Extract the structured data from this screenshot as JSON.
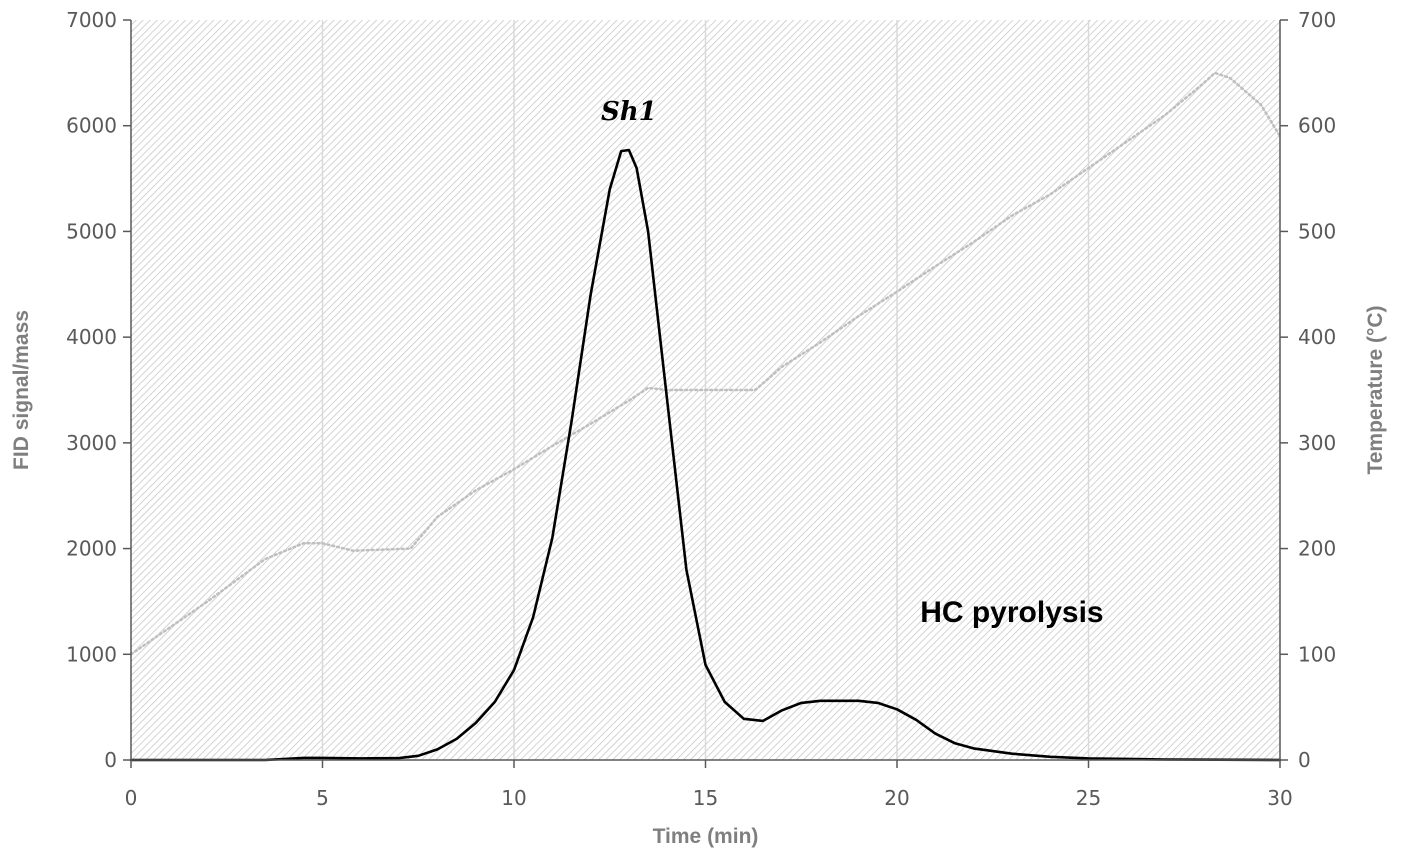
{
  "chart_data": {
    "type": "line",
    "xlabel": "Time (min)",
    "ylabel": "FID signal/mass",
    "y2label": "Temperature (°C)",
    "xlim": [
      0,
      30
    ],
    "ylim": [
      0,
      7000
    ],
    "y2lim": [
      0,
      700
    ],
    "x_ticks": [
      "0",
      "5",
      "10",
      "15",
      "20",
      "25",
      "30"
    ],
    "y_ticks": [
      "0",
      "1000",
      "2000",
      "3000",
      "4000",
      "5000",
      "6000",
      "7000"
    ],
    "y2_ticks": [
      "0",
      "100",
      "200",
      "300",
      "400",
      "500",
      "600",
      "700"
    ],
    "grid": "vertical",
    "annotations": [
      {
        "text": "Sh1",
        "x": 13.0,
        "y": 6150
      },
      {
        "text": "HC pyrolysis",
        "x": 23.0,
        "y": 1400
      }
    ],
    "series": [
      {
        "axis": "left",
        "color": "#000000",
        "style": "solid",
        "points": [
          [
            0,
            0
          ],
          [
            3.5,
            0
          ],
          [
            4.5,
            20
          ],
          [
            5,
            20
          ],
          [
            6,
            15
          ],
          [
            7,
            18
          ],
          [
            7.5,
            40
          ],
          [
            8,
            100
          ],
          [
            8.5,
            200
          ],
          [
            9,
            350
          ],
          [
            9.5,
            550
          ],
          [
            10,
            850
          ],
          [
            10.5,
            1350
          ],
          [
            11,
            2100
          ],
          [
            11.5,
            3200
          ],
          [
            12,
            4400
          ],
          [
            12.5,
            5400
          ],
          [
            12.8,
            5760
          ],
          [
            13,
            5770
          ],
          [
            13.2,
            5600
          ],
          [
            13.5,
            5000
          ],
          [
            14,
            3400
          ],
          [
            14.5,
            1800
          ],
          [
            15,
            900
          ],
          [
            15.5,
            550
          ],
          [
            16,
            390
          ],
          [
            16.5,
            370
          ],
          [
            17,
            470
          ],
          [
            17.5,
            540
          ],
          [
            18,
            560
          ],
          [
            19,
            560
          ],
          [
            19.5,
            540
          ],
          [
            20,
            480
          ],
          [
            20.5,
            380
          ],
          [
            21,
            250
          ],
          [
            21.5,
            160
          ],
          [
            22,
            110
          ],
          [
            23,
            60
          ],
          [
            24,
            30
          ],
          [
            25,
            15
          ],
          [
            27,
            5
          ],
          [
            30,
            0
          ]
        ]
      },
      {
        "axis": "right",
        "color": "#bfbfbf",
        "style": "dotted",
        "points": [
          [
            0,
            100
          ],
          [
            2,
            150
          ],
          [
            3.5,
            190
          ],
          [
            4.5,
            205
          ],
          [
            5,
            205
          ],
          [
            5.8,
            198
          ],
          [
            7.3,
            200
          ],
          [
            8,
            230
          ],
          [
            9,
            255
          ],
          [
            10,
            275
          ],
          [
            11,
            297
          ],
          [
            12,
            318
          ],
          [
            13,
            340
          ],
          [
            13.5,
            352
          ],
          [
            14,
            350
          ],
          [
            15,
            350
          ],
          [
            16.3,
            350
          ],
          [
            17,
            372
          ],
          [
            18,
            395
          ],
          [
            19,
            420
          ],
          [
            20,
            443
          ],
          [
            21,
            467
          ],
          [
            22,
            490
          ],
          [
            23,
            515
          ],
          [
            24,
            535
          ],
          [
            25,
            560
          ],
          [
            26,
            585
          ],
          [
            27,
            610
          ],
          [
            28,
            640
          ],
          [
            28.3,
            650
          ],
          [
            28.7,
            645
          ],
          [
            29.5,
            620
          ],
          [
            30,
            590
          ]
        ]
      }
    ]
  }
}
